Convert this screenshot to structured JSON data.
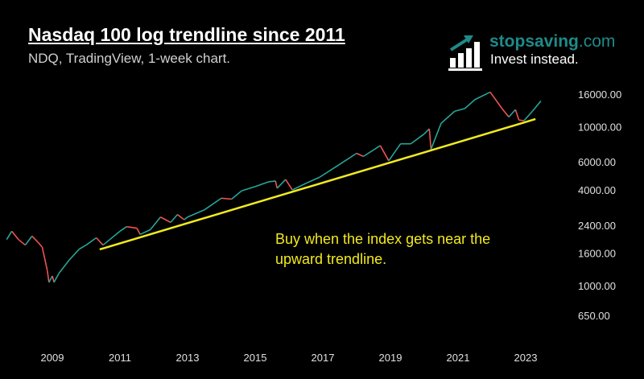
{
  "header": {
    "title": "Nasdaq 100 log trendline since 2011",
    "subtitle": "NDQ, TradingView, 1-week chart."
  },
  "logo": {
    "brand_main": "stopsaving",
    "brand_suffix": ".com",
    "tagline": "Invest instead.",
    "icon": "bar-chart-arrow-icon"
  },
  "annotation": "Buy when the index gets near the upward trendline.",
  "colors": {
    "up": "#26a69a",
    "down": "#ef5350",
    "trendline": "#f2ea1e",
    "brand": "#1f8a8a"
  },
  "chart_data": {
    "type": "line",
    "title": "Nasdaq 100 log trendline since 2011",
    "yscale": "log",
    "ylim": [
      560,
      20000
    ],
    "xlim": [
      2007.6,
      2024.5
    ],
    "y_ticks": [
      "16000.00",
      "10000.00",
      "6000.00",
      "4000.00",
      "2400.00",
      "1600.00",
      "1000.00",
      "650.00"
    ],
    "y_tick_values": [
      16000,
      10000,
      6000,
      4000,
      2400,
      1600,
      1000,
      650
    ],
    "x_ticks": [
      "2009",
      "2011",
      "2013",
      "2015",
      "2017",
      "2019",
      "2021",
      "2023"
    ],
    "x_tick_values": [
      2009,
      2011,
      2013,
      2015,
      2017,
      2019,
      2021,
      2023
    ],
    "series": [
      {
        "name": "NDQ weekly",
        "x": [
          2007.65,
          2007.8,
          2008.0,
          2008.2,
          2008.4,
          2008.6,
          2008.7,
          2008.85,
          2008.9,
          2009.0,
          2009.05,
          2009.2,
          2009.5,
          2009.8,
          2010.0,
          2010.3,
          2010.5,
          2010.7,
          2011.0,
          2011.2,
          2011.5,
          2011.6,
          2011.9,
          2012.2,
          2012.5,
          2012.7,
          2012.9,
          2013.0,
          2013.5,
          2014.0,
          2014.3,
          2014.6,
          2015.0,
          2015.4,
          2015.6,
          2015.65,
          2015.9,
          2016.1,
          2016.5,
          2016.9,
          2017.5,
          2018.0,
          2018.2,
          2018.7,
          2018.95,
          2019.3,
          2019.6,
          2020.0,
          2020.15,
          2020.2,
          2020.5,
          2020.9,
          2021.2,
          2021.5,
          2021.95,
          2022.3,
          2022.5,
          2022.7,
          2022.8,
          2022.95,
          2023.2,
          2023.45
        ],
        "y": [
          1950,
          2200,
          1950,
          1800,
          2050,
          1850,
          1750,
          1250,
          1050,
          1150,
          1050,
          1200,
          1450,
          1700,
          1800,
          2000,
          1800,
          1950,
          2200,
          2350,
          2300,
          2100,
          2250,
          2700,
          2500,
          2800,
          2600,
          2700,
          3000,
          3550,
          3500,
          3950,
          4200,
          4500,
          4550,
          4100,
          4650,
          4000,
          4400,
          4800,
          5800,
          6800,
          6500,
          7600,
          6100,
          7800,
          7800,
          9000,
          9700,
          7200,
          10500,
          12500,
          13000,
          14800,
          16500,
          13000,
          11500,
          12800,
          11000,
          10900,
          12500,
          14500
        ]
      },
      {
        "name": "Log trendline",
        "x": [
          2010.4,
          2023.29
        ],
        "y": [
          1690,
          11160
        ]
      }
    ]
  }
}
